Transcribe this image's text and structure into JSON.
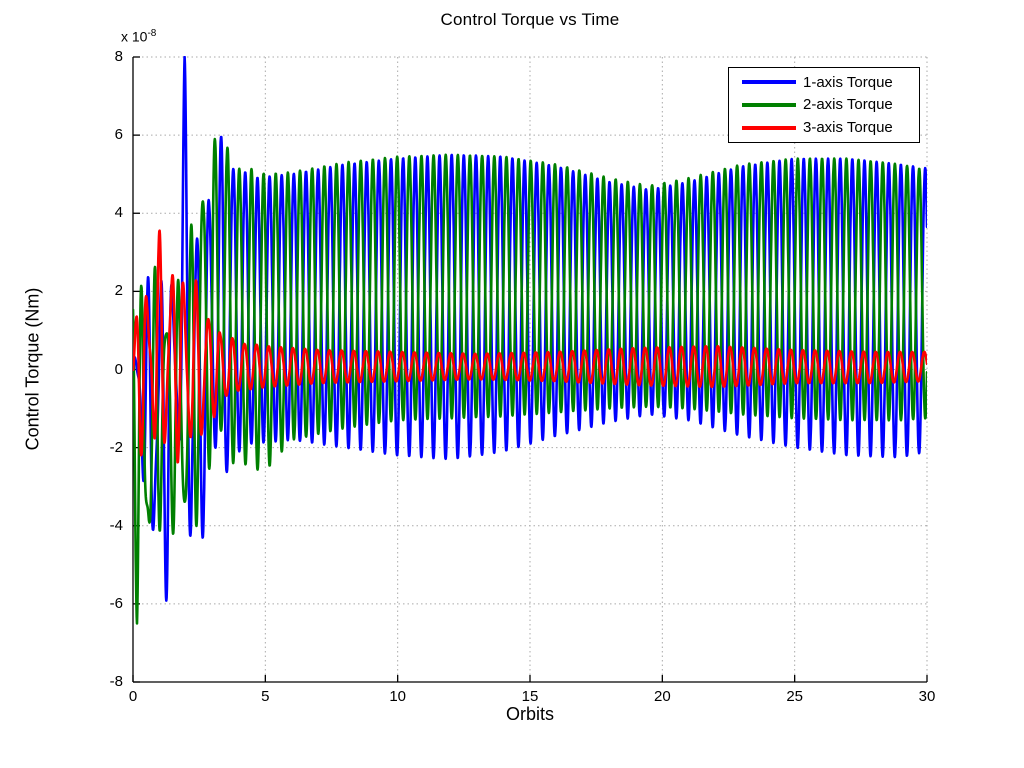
{
  "chart_data": {
    "type": "line",
    "title": "Control Torque vs Time",
    "xlabel": "Orbits",
    "ylabel": "Control Torque (Nm)",
    "y_scale_label": "x 10",
    "y_scale_exponent": "-8",
    "x_range": [
      0,
      30
    ],
    "y_range": [
      -8,
      8
    ],
    "x_ticks": [
      0,
      5,
      10,
      15,
      20,
      25,
      30
    ],
    "y_ticks": [
      -8,
      -6,
      -4,
      -2,
      0,
      2,
      4,
      6,
      8
    ],
    "grid": "dotted",
    "grid_color": "#aaaaaa",
    "axis_color": "#000000",
    "background": "#ffffff",
    "legend_position": "top-right",
    "line_width": 2.6,
    "carrier_cycles_per_orbit": 2.18,
    "transient": {
      "end_orbit": 4.5,
      "secondary_cycles_per_orbit": 3.6,
      "secondary_weight": 0.35
    },
    "series": [
      {
        "name": "1-axis Torque",
        "color": "#0000ff",
        "phase": 0.0,
        "phase2": 1.44,
        "envelope": [
          [
            0,
            -0.4,
            0.4
          ],
          [
            0.6,
            -5,
            2.5
          ],
          [
            0.9,
            -6.1,
            3.4
          ],
          [
            1.3,
            -5.9,
            3.3
          ],
          [
            1.7,
            -2.5,
            3.2
          ],
          [
            1.95,
            -3,
            8
          ],
          [
            2.2,
            -6,
            6
          ],
          [
            2.6,
            -4.5,
            3.2
          ],
          [
            3,
            -2.5,
            5.9
          ],
          [
            3.4,
            -3.4,
            6
          ],
          [
            3.8,
            -2.2,
            5.5
          ],
          [
            4.5,
            -1.9,
            4.9
          ],
          [
            6,
            -1.8,
            5
          ],
          [
            8,
            -2,
            5.25
          ],
          [
            10,
            -2.2,
            5.4
          ],
          [
            12,
            -2.3,
            5.5
          ],
          [
            14,
            -2.1,
            5.45
          ],
          [
            16,
            -1.7,
            5.2
          ],
          [
            18,
            -1.35,
            4.8
          ],
          [
            19.5,
            -1.15,
            4.6
          ],
          [
            21,
            -1.3,
            4.8
          ],
          [
            23,
            -1.7,
            5.2
          ],
          [
            25,
            -2,
            5.4
          ],
          [
            27,
            -2.2,
            5.4
          ],
          [
            29,
            -2.25,
            5.25
          ],
          [
            30,
            -2.1,
            5.15
          ]
        ]
      },
      {
        "name": "2-axis Torque",
        "color": "#008000",
        "phase": 3.09,
        "phase2": 1.32,
        "envelope": [
          [
            0,
            -3,
            3.6
          ],
          [
            0.15,
            -6.8,
            3
          ],
          [
            0.6,
            -6.2,
            2.2
          ],
          [
            1,
            -4.5,
            3.3
          ],
          [
            1.5,
            -4.4,
            2.2
          ],
          [
            2,
            -5,
            3
          ],
          [
            2.5,
            -4,
            5.5
          ],
          [
            3.1,
            -2.2,
            6
          ],
          [
            3.6,
            -2.4,
            5.9
          ],
          [
            4.2,
            -2.5,
            5.2
          ],
          [
            5,
            -2.6,
            5
          ],
          [
            6,
            -1.8,
            5.05
          ],
          [
            8,
            -1.5,
            5.3
          ],
          [
            10,
            -1.3,
            5.45
          ],
          [
            12,
            -1.25,
            5.5
          ],
          [
            14,
            -1.2,
            5.45
          ],
          [
            16,
            -1.1,
            5.25
          ],
          [
            18,
            -1,
            4.9
          ],
          [
            19.5,
            -0.95,
            4.7
          ],
          [
            21,
            -1,
            4.9
          ],
          [
            23,
            -1.15,
            5.25
          ],
          [
            25,
            -1.25,
            5.4
          ],
          [
            27,
            -1.3,
            5.4
          ],
          [
            29,
            -1.3,
            5.25
          ],
          [
            30,
            -1.25,
            5.1
          ]
        ]
      },
      {
        "name": "3-axis Torque",
        "color": "#ff0000",
        "phase": 0.44,
        "phase2": 4.08,
        "envelope": [
          [
            0,
            -1.5,
            1.5
          ],
          [
            0.4,
            -2.4,
            2.4
          ],
          [
            0.8,
            -2.6,
            3.6
          ],
          [
            1.3,
            -2.7,
            3.5
          ],
          [
            1.8,
            -2.3,
            2.8
          ],
          [
            2.3,
            -2.4,
            2.4
          ],
          [
            2.8,
            -1.6,
            1.7
          ],
          [
            3.3,
            -0.9,
            1
          ],
          [
            4,
            -0.55,
            0.7
          ],
          [
            5,
            -0.45,
            0.6
          ],
          [
            7,
            -0.35,
            0.5
          ],
          [
            10,
            -0.3,
            0.45
          ],
          [
            13,
            -0.25,
            0.4
          ],
          [
            16,
            -0.3,
            0.45
          ],
          [
            19,
            -0.4,
            0.55
          ],
          [
            22,
            -0.45,
            0.6
          ],
          [
            25,
            -0.35,
            0.5
          ],
          [
            28,
            -0.35,
            0.45
          ],
          [
            30,
            -0.3,
            0.45
          ]
        ]
      }
    ]
  }
}
